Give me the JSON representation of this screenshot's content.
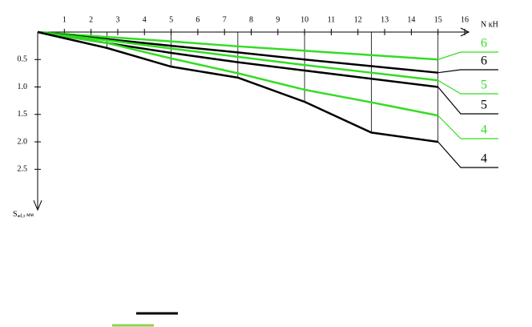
{
  "chart_data": {
    "type": "line",
    "xlabel": "N кН",
    "ylabel": "S",
    "ylabel_sub": "ad,з",
    "ylabel_unit": "мм",
    "x": [
      0,
      2.6,
      5,
      7.5,
      10,
      12.5,
      15
    ],
    "xlim": [
      0,
      16
    ],
    "xticks": [
      1,
      2,
      3,
      4,
      5,
      6,
      7,
      8,
      9,
      10,
      11,
      12,
      13,
      14,
      15,
      16
    ],
    "ylim": [
      0,
      3
    ],
    "yticks": [
      0.5,
      {
        "value": 1,
        "label": "1.0"
      },
      1.5,
      {
        "value": 2,
        "label": "2.0"
      },
      2.5
    ],
    "y_inverted": true,
    "series": [
      {
        "name": "6",
        "color": "#33dd22",
        "values": [
          0,
          0.09,
          0.17,
          0.26,
          0.34,
          0.42,
          0.5
        ]
      },
      {
        "name": "6",
        "color": "#000000",
        "values": [
          0,
          0.13,
          0.25,
          0.37,
          0.5,
          0.62,
          0.74
        ]
      },
      {
        "name": "5",
        "color": "#33dd22",
        "values": [
          0,
          0.15,
          0.3,
          0.45,
          0.6,
          0.74,
          0.88
        ]
      },
      {
        "name": "5",
        "color": "#000000",
        "values": [
          0,
          0.2,
          0.38,
          0.55,
          0.7,
          0.85,
          1.0
        ]
      },
      {
        "name": "4",
        "color": "#33dd22",
        "values": [
          0,
          0.2,
          0.48,
          0.75,
          1.05,
          1.28,
          1.52
        ]
      },
      {
        "name": "4",
        "color": "#000000",
        "values": [
          0,
          0.29,
          0.63,
          0.83,
          1.27,
          1.83,
          2.0
        ]
      }
    ]
  }
}
